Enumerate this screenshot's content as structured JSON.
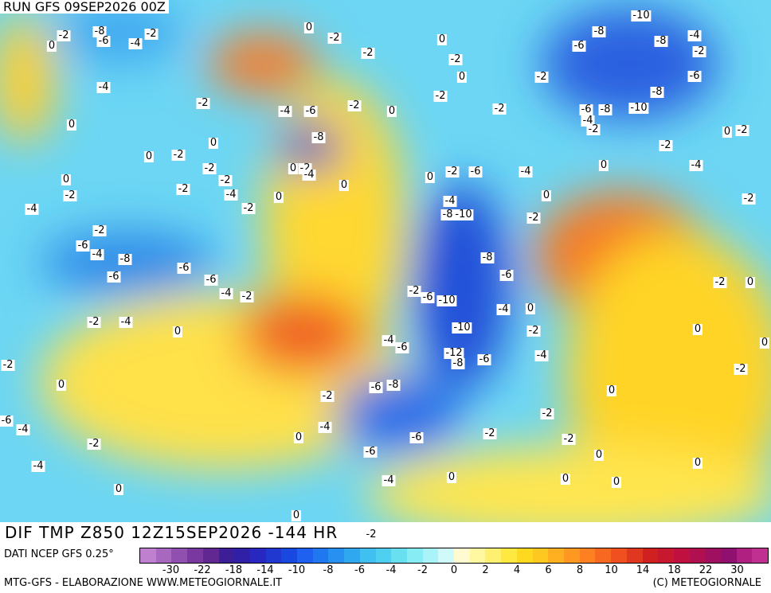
{
  "header": {
    "run": "RUN GFS 09SEP2026 00Z"
  },
  "footer": {
    "title": "DIF TMP Z850 12Z15SEP2026 -144 HR",
    "source": "DATI NCEP GFS 0.25°",
    "credit": "MTG-GFS - ELABORAZIONE WWW.METEOGIORNALE.IT",
    "copyright": "(C) METEOGIORNALE"
  },
  "colorbar": {
    "colors": [
      "#c080d0",
      "#a868c0",
      "#9050b0",
      "#7838a0",
      "#602890",
      "#3c1e96",
      "#3020a8",
      "#2828c0",
      "#2038d0",
      "#1848e0",
      "#1e60f0",
      "#2078f0",
      "#2890f0",
      "#30a8f0",
      "#40c0f0",
      "#50d0f0",
      "#68e0f0",
      "#88ecf4",
      "#a8f4f8",
      "#d0fafa",
      "#fffad0",
      "#fff8a0",
      "#fff070",
      "#ffe840",
      "#ffd820",
      "#ffc820",
      "#ffb020",
      "#ff9820",
      "#ff8020",
      "#f86820",
      "#f05020",
      "#e03820",
      "#d02020",
      "#c81830",
      "#c01040",
      "#b01050",
      "#a01060",
      "#901070",
      "#b02080",
      "#c03090"
    ],
    "labels": [
      "-30",
      "-22",
      "-18",
      "-14",
      "-10",
      "-8",
      "-6",
      "-4",
      "-2",
      "0",
      "2",
      "4",
      "6",
      "8",
      "10",
      "14",
      "18",
      "22",
      "30"
    ]
  },
  "contour_labels": [
    "-2",
    "-8",
    "-6",
    "-2",
    "-4",
    "0",
    "-2",
    "-2",
    "0",
    "-2",
    "0",
    "-10",
    "-8",
    "-8",
    "-4",
    "-2",
    "-6",
    "-6",
    "-2",
    "-4",
    "0",
    "0",
    "-2",
    "-4",
    "-6",
    "-2",
    "0",
    "-2",
    "-2",
    "-8",
    "-10",
    "-6",
    "-8",
    "-4",
    "-2",
    "-8",
    "0",
    "0",
    "-2",
    "0",
    "-2",
    "-4",
    "-2",
    "-2",
    "-2",
    "-4",
    "-2",
    "0",
    "0",
    "0",
    "-2",
    "-4",
    "0",
    "-2",
    "-6",
    "-4",
    "0",
    "-2",
    "-4",
    "-2",
    "0",
    "-2",
    "-4",
    "-8",
    "-10",
    "0",
    "-2",
    "-2",
    "-6",
    "-4",
    "-8",
    "-6",
    "-6",
    "-6",
    "-4",
    "-2",
    "-8",
    "-6",
    "-2",
    "-6",
    "-10",
    "-4",
    "0",
    "-2",
    "0",
    "-2",
    "-4",
    "0",
    "-10",
    "-2",
    "0",
    "-4",
    "-6",
    "-12",
    "-8",
    "-6",
    "-4",
    "0",
    "-2",
    "-2",
    "0",
    "-6",
    "-8",
    "-2",
    "0",
    "-6",
    "-4",
    "-4",
    "-2",
    "-6",
    "-2",
    "-2",
    "0",
    "-2",
    "-6",
    "0",
    "-4",
    "0",
    "-4",
    "0",
    "0",
    "0",
    "0",
    "0",
    "-2"
  ]
}
